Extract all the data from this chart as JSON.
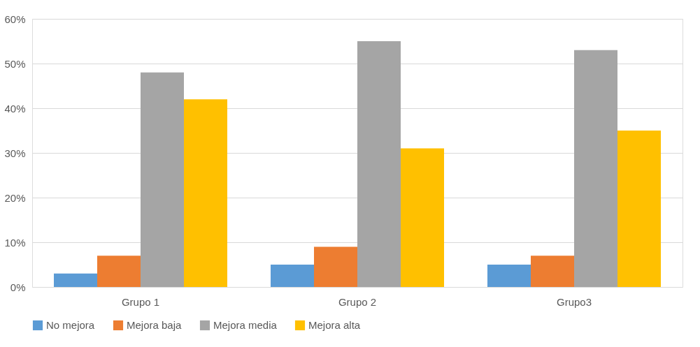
{
  "chart_data": {
    "type": "bar",
    "categories": [
      "Grupo 1",
      "Grupo 2",
      "Grupo3"
    ],
    "series": [
      {
        "name": "No mejora",
        "color": "#5b9bd5",
        "values": [
          3,
          5,
          5
        ]
      },
      {
        "name": "Mejora baja",
        "color": "#ed7d31",
        "values": [
          7,
          9,
          7
        ]
      },
      {
        "name": "Mejora media",
        "color": "#a5a5a5",
        "values": [
          48,
          55,
          53
        ]
      },
      {
        "name": "Mejora alta",
        "color": "#ffc000",
        "values": [
          42,
          31,
          35
        ]
      }
    ],
    "ylim": [
      0,
      60
    ],
    "yticks": [
      {
        "value": 0,
        "label": "0%"
      },
      {
        "value": 10,
        "label": "10%"
      },
      {
        "value": 20,
        "label": "20%"
      },
      {
        "value": 30,
        "label": "30%"
      },
      {
        "value": 40,
        "label": "40%"
      },
      {
        "value": 50,
        "label": "50%"
      },
      {
        "value": 60,
        "label": "60%"
      }
    ],
    "grid": "y",
    "legend": "bottom"
  }
}
